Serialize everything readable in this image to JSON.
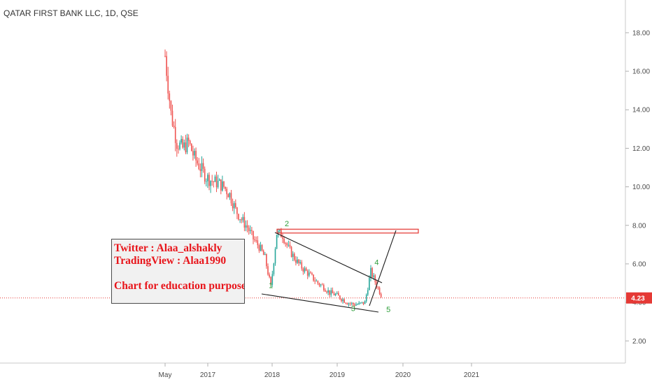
{
  "header": {
    "title": "QATAR FIRST BANK LLC, 1D, QSE"
  },
  "note": {
    "line1": "Twitter : Alaa_alshakly",
    "line2": "TradingView : Alaa1990",
    "line3": "Chart for education purposes"
  },
  "colors": {
    "up": "#26a69a",
    "down": "#ef5350",
    "price_line": "#e53935",
    "resistance_zone": "#e53935",
    "wave_label": "#2e9e3a",
    "note_text": "#e8141a"
  },
  "chart_data": {
    "type": "line",
    "title": "QATAR FIRST BANK LLC, 1D, QSE",
    "xlabel": "",
    "ylabel": "",
    "ylim": [
      0.85,
      19.7
    ],
    "x_ticks": [
      "May",
      "2017",
      "2018",
      "2019",
      "2020",
      "2021"
    ],
    "y_ticks": [
      "2.00",
      "4.00",
      "6.00",
      "8.00",
      "10.00",
      "12.00",
      "14.00",
      "16.00",
      "18.00"
    ],
    "grid": false,
    "last_price": {
      "label": "4.23",
      "value": 4.23
    },
    "series": [
      {
        "x": [
          "2016-05",
          "2016-06",
          "2016-07",
          "2016-08",
          "2016-09",
          "2016-10",
          "2016-11",
          "2016-12",
          "2017-01",
          "2017-02",
          "2017-03",
          "2017-04",
          "2017-05",
          "2017-06",
          "2017-07",
          "2017-08",
          "2017-09",
          "2017-10",
          "2017-11",
          "2017-12",
          "2018-01",
          "2018-02",
          "2018-03",
          "2018-04",
          "2018-05",
          "2018-06",
          "2018-07",
          "2018-08",
          "2018-09",
          "2018-10",
          "2018-11",
          "2018-12",
          "2019-01",
          "2019-02",
          "2019-03",
          "2019-04",
          "2019-05",
          "2019-06"
        ],
        "values": [
          16.8,
          13.8,
          12.3,
          12.0,
          12.3,
          11.5,
          11.0,
          10.5,
          10.3,
          10.2,
          10.0,
          9.6,
          8.8,
          8.3,
          7.9,
          7.3,
          6.9,
          6.3,
          4.8,
          7.6,
          7.5,
          6.8,
          6.3,
          5.9,
          5.6,
          5.3,
          5.0,
          4.8,
          4.5,
          4.4,
          4.2,
          4.0,
          3.9,
          3.9,
          4.0,
          5.6,
          4.9,
          4.23
        ]
      }
    ],
    "wave_labels": [
      {
        "label": "1",
        "x": "2017-11",
        "value": 4.75
      },
      {
        "label": "2",
        "x": "2018-01",
        "value": 7.95
      },
      {
        "label": "3",
        "x": "2019-01",
        "value": 3.55
      },
      {
        "label": "4",
        "x": "2019-05",
        "value": 5.95
      },
      {
        "label": "5",
        "x": "2019-07",
        "value": 3.5
      }
    ],
    "resistance_zone": {
      "from": "2018-01",
      "to": "2020-03",
      "low": 7.6,
      "high": 7.8
    }
  }
}
